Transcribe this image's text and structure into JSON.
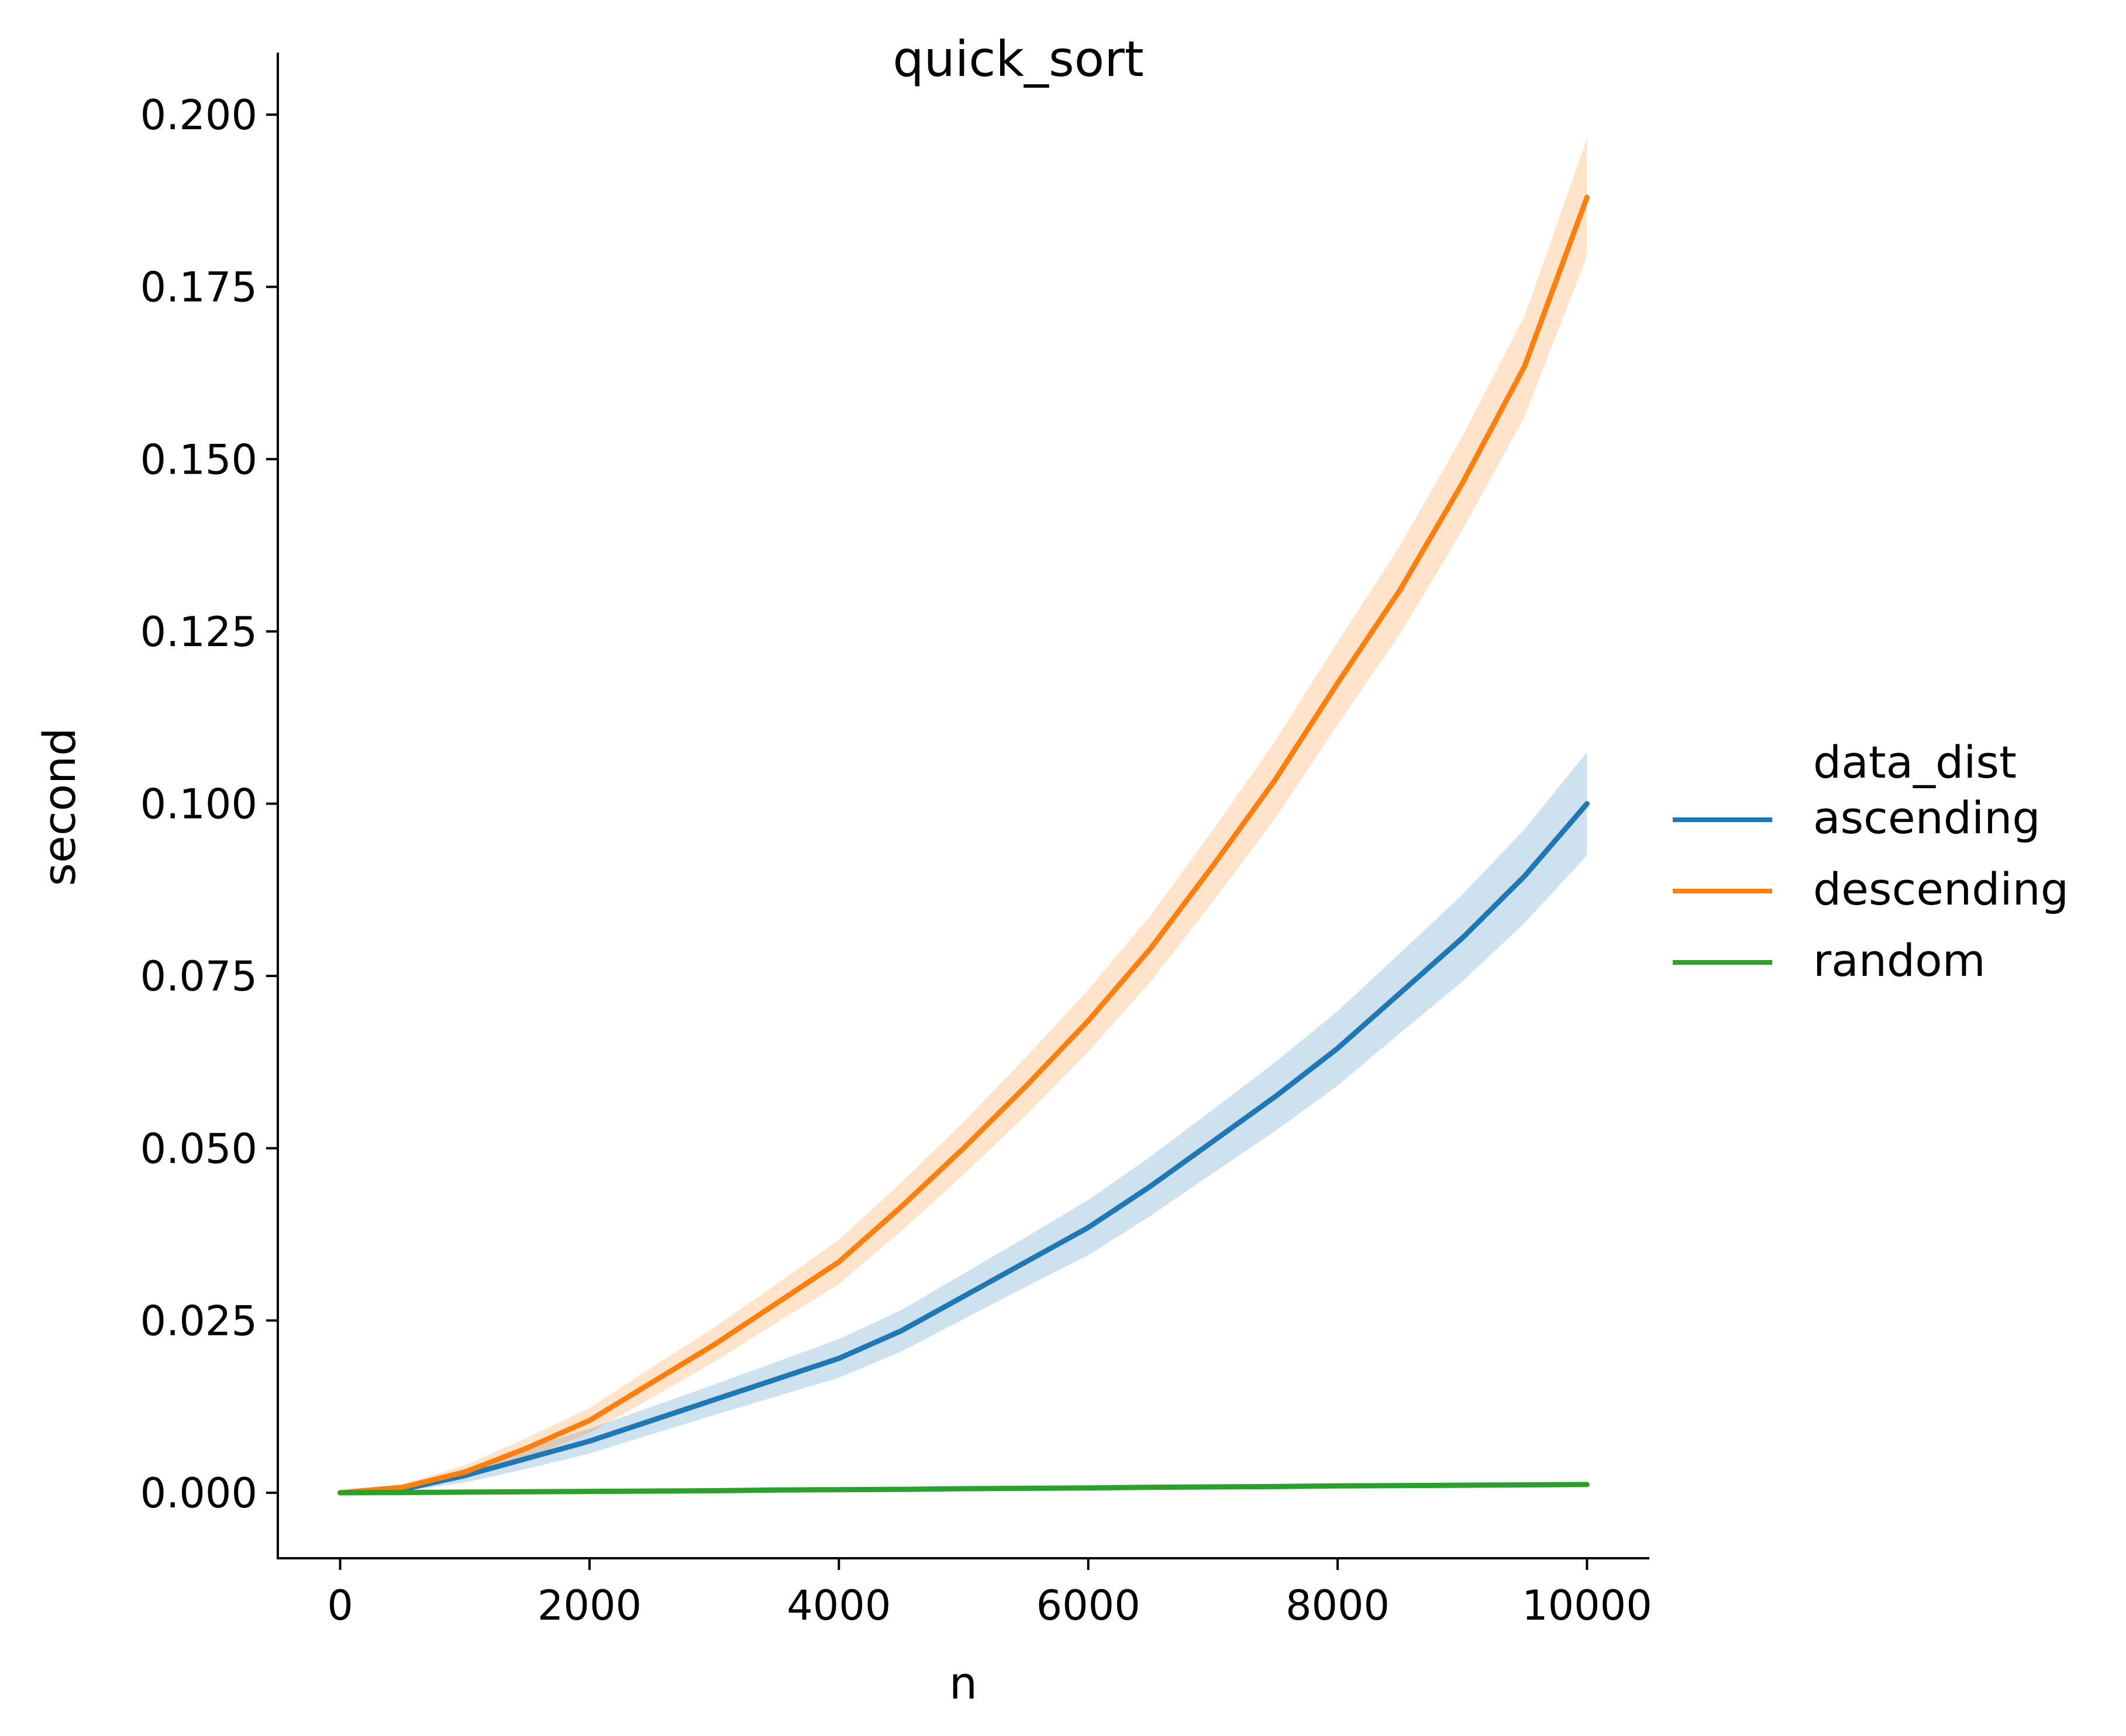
{
  "chart_data": {
    "type": "line",
    "title": "quick_sort",
    "xlabel": "n",
    "ylabel": "second",
    "xlim": [
      -500,
      10500
    ],
    "ylim": [
      -0.0095,
      0.209
    ],
    "x_ticks": [
      0,
      2000,
      4000,
      6000,
      8000,
      10000
    ],
    "x_tick_labels": [
      "0",
      "2000",
      "4000",
      "6000",
      "8000",
      "10000"
    ],
    "y_ticks": [
      0.0,
      0.025,
      0.05,
      0.075,
      0.1,
      0.125,
      0.15,
      0.175,
      0.2
    ],
    "y_tick_labels": [
      "0.000",
      "0.025",
      "0.050",
      "0.075",
      "0.100",
      "0.125",
      "0.150",
      "0.175",
      "0.200"
    ],
    "grid": false,
    "legend": {
      "title": "data_dist",
      "placement": "right"
    },
    "x": [
      0,
      500,
      1000,
      1500,
      2000,
      2500,
      3000,
      3500,
      4000,
      4500,
      5000,
      5500,
      6000,
      6500,
      7000,
      7500,
      8000,
      8500,
      9000,
      9500,
      10000
    ],
    "series": [
      {
        "name": "ascending",
        "color": "#1f77b4",
        "values": [
          0.0,
          0.0005,
          0.0025,
          0.005,
          0.0075,
          0.0105,
          0.0135,
          0.0165,
          0.0195,
          0.0235,
          0.0285,
          0.0335,
          0.0385,
          0.0445,
          0.051,
          0.0575,
          0.0645,
          0.0725,
          0.0805,
          0.0895,
          0.1
        ],
        "band_halfwidth": [
          0.0,
          0.0003,
          0.001,
          0.0015,
          0.0018,
          0.002,
          0.0022,
          0.0025,
          0.0028,
          0.003,
          0.0033,
          0.0036,
          0.004,
          0.0043,
          0.0046,
          0.005,
          0.0054,
          0.0058,
          0.0063,
          0.0068,
          0.0075
        ]
      },
      {
        "name": "descending",
        "color": "#ff7f0e",
        "values": [
          0.0,
          0.0008,
          0.003,
          0.0065,
          0.0105,
          0.016,
          0.0215,
          0.0275,
          0.0335,
          0.0415,
          0.05,
          0.059,
          0.0685,
          0.079,
          0.091,
          0.1035,
          0.1175,
          0.131,
          0.1465,
          0.1635,
          0.188
        ],
        "band_halfwidth": [
          0.0,
          0.0004,
          0.001,
          0.0015,
          0.0018,
          0.0022,
          0.0025,
          0.0028,
          0.0032,
          0.0035,
          0.0038,
          0.0042,
          0.0045,
          0.0048,
          0.0052,
          0.0056,
          0.006,
          0.0064,
          0.0068,
          0.0073,
          0.0085
        ]
      },
      {
        "name": "random",
        "color": "#2ca02c",
        "values": [
          0.0,
          5e-05,
          0.0001,
          0.00015,
          0.0002,
          0.00025,
          0.0003,
          0.0004,
          0.00045,
          0.0005,
          0.0006,
          0.00065,
          0.0007,
          0.0008,
          0.00085,
          0.0009,
          0.001,
          0.00105,
          0.0011,
          0.00115,
          0.0012
        ],
        "band_halfwidth": [
          0.0,
          2e-05,
          3e-05,
          3e-05,
          4e-05,
          4e-05,
          5e-05,
          5e-05,
          5e-05,
          6e-05,
          6e-05,
          6e-05,
          7e-05,
          7e-05,
          7e-05,
          8e-05,
          8e-05,
          8e-05,
          9e-05,
          9e-05,
          0.0001
        ]
      }
    ]
  }
}
